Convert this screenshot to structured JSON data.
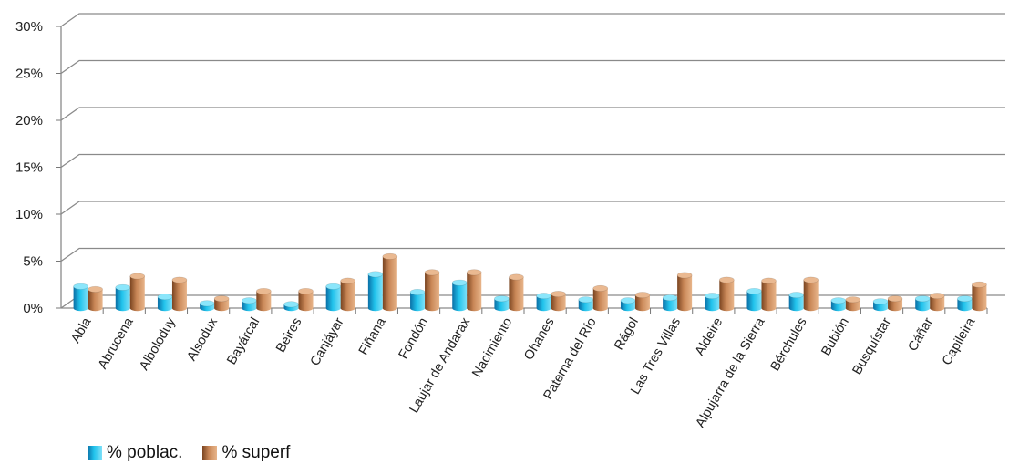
{
  "chart_data": {
    "type": "bar",
    "categories": [
      "Abla",
      "Abrucena",
      "Alboloduy",
      "Alsodux",
      "Bayárcal",
      "Beires",
      "Canjáyar",
      "Fiñana",
      "Fondón",
      "Laujar de Andarax",
      "Nacimiento",
      "Ohanes",
      "Paterna del Río",
      "Rágol",
      "Las Tres Villas",
      "Aldeire",
      "Alpujarra de la Sierra",
      "Bérchules",
      "Bubión",
      "Busquístar",
      "Cáñar",
      "Capileira"
    ],
    "series": [
      {
        "name": "% poblac.",
        "values": [
          2.3,
          2.2,
          1.2,
          0.5,
          0.8,
          0.4,
          2.3,
          3.6,
          1.7,
          2.7,
          1.0,
          1.3,
          0.9,
          0.8,
          1.1,
          1.3,
          1.8,
          1.4,
          0.8,
          0.7,
          1.0,
          1.0
        ],
        "color": "#1ab0e0"
      },
      {
        "name": "% superf",
        "values": [
          2.0,
          3.4,
          3.0,
          1.0,
          1.8,
          1.8,
          2.9,
          5.5,
          3.8,
          3.8,
          3.3,
          1.5,
          2.1,
          1.4,
          3.5,
          3.0,
          2.9,
          3.0,
          0.9,
          1.0,
          1.3,
          2.5
        ],
        "color": "#b8784a"
      }
    ],
    "ylim": [
      0,
      30
    ],
    "yticks": [
      "0%",
      "5%",
      "10%",
      "15%",
      "20%",
      "25%",
      "30%"
    ],
    "grid": true,
    "legend_position": "bottom-left"
  }
}
